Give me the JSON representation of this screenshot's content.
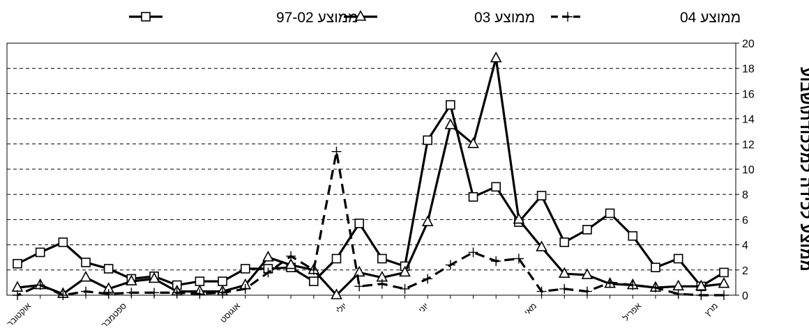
{
  "chart_data": {
    "type": "line",
    "ylabel": "ממוצע לכידה למלכודת\\שבוע",
    "ylim": [
      0,
      20
    ],
    "yticks": [
      "0",
      "2",
      "4",
      "6",
      "8",
      "10",
      "12",
      "14",
      "16",
      "18",
      "20"
    ],
    "y_axis_side": "right",
    "x_direction": "right-to-left",
    "grid": "horizontal-dashed",
    "legend_position": "top",
    "x_month_labels": [
      "מרץ",
      "אפריל",
      "מאי",
      "יוני",
      "יולי",
      "אוגוסט",
      "ספטמבר",
      "אוקטובר"
    ],
    "series": [
      {
        "name": "ממוצע 97-02",
        "marker": "square",
        "line_style": "solid",
        "values": [
          1.8,
          0.7,
          2.9,
          2.2,
          4.7,
          6.5,
          5.2,
          4.2,
          7.9,
          5.8,
          8.6,
          7.8,
          15.1,
          12.3,
          2.3,
          2.9,
          5.7,
          2.9,
          1.1,
          2.2,
          2.1,
          2.1,
          1.1,
          1.1,
          0.8,
          1.5,
          1.3,
          2.1,
          2.6,
          4.2,
          3.4,
          2.5
        ]
      },
      {
        "name": "ממוצע 03",
        "marker": "triangle",
        "line_style": "solid",
        "values": [
          0.9,
          0.7,
          0.7,
          0.6,
          0.8,
          0.9,
          1.6,
          1.7,
          3.8,
          6.0,
          18.8,
          12.0,
          13.5,
          5.8,
          1.8,
          1.4,
          1.8,
          0.0,
          2.0,
          2.4,
          3.0,
          0.8,
          0.3,
          0.3,
          0.3,
          1.3,
          1.1,
          0.5,
          1.4,
          0.1,
          0.8,
          0.6
        ]
      },
      {
        "name": "ממוצע 04",
        "marker": "plus",
        "line_style": "dashed",
        "values": [
          0.0,
          0.0,
          0.1,
          0.6,
          0.8,
          1.0,
          0.3,
          0.5,
          0.3,
          2.9,
          2.7,
          3.4,
          2.4,
          1.3,
          0.5,
          0.9,
          0.7,
          11.4,
          2.0,
          3.1,
          1.8,
          0.5,
          0.2,
          0.1,
          0.2,
          0.2,
          0.2,
          0.1,
          0.3,
          0.0,
          0.8,
          0.0
        ]
      }
    ]
  }
}
